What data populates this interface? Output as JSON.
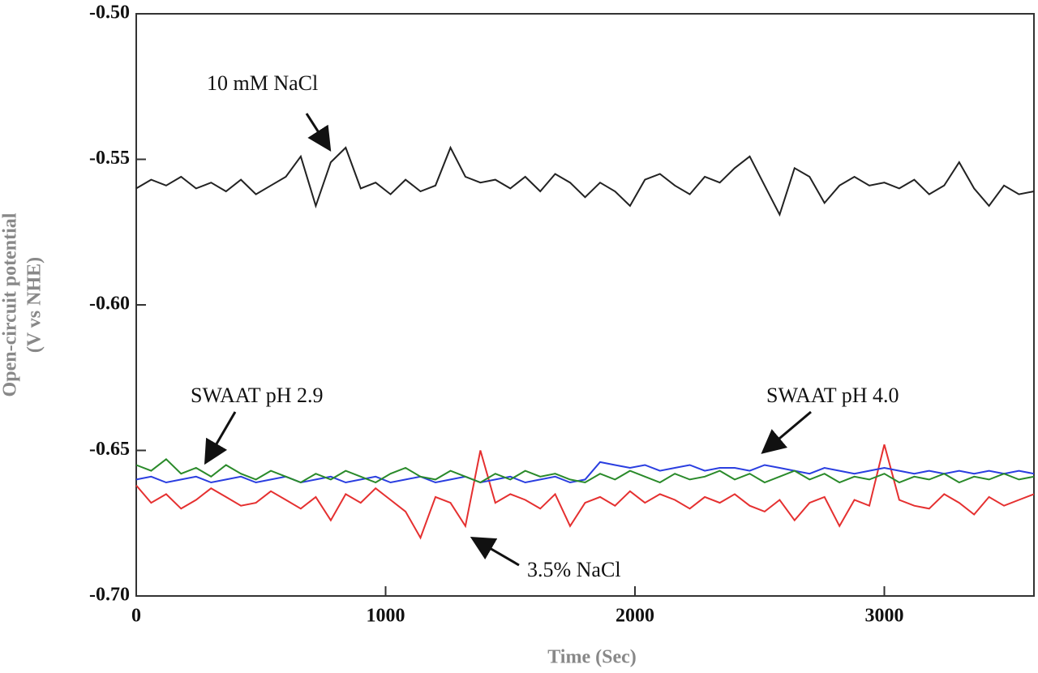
{
  "chart_data": {
    "type": "line",
    "xlabel": "Time (Sec)",
    "ylabel": [
      "Open-circuit potential",
      "(V vs NHE)"
    ],
    "xlim": [
      0,
      3600
    ],
    "ylim": [
      -0.7,
      -0.5
    ],
    "xticks": [
      0,
      1000,
      2000,
      3000
    ],
    "yticks": [
      {
        "value": -0.7,
        "label": "-0.70"
      },
      -0.65,
      {
        "value": -0.6,
        "label": "-0.60"
      },
      -0.55,
      {
        "value": -0.5,
        "label": "-0.50"
      }
    ],
    "x": [
      0,
      60,
      120,
      180,
      240,
      300,
      360,
      420,
      480,
      540,
      600,
      660,
      720,
      780,
      840,
      900,
      960,
      1020,
      1080,
      1140,
      1200,
      1260,
      1320,
      1380,
      1440,
      1500,
      1560,
      1620,
      1680,
      1740,
      1800,
      1860,
      1920,
      1980,
      2040,
      2100,
      2160,
      2220,
      2280,
      2340,
      2400,
      2460,
      2520,
      2580,
      2640,
      2700,
      2760,
      2820,
      2880,
      2940,
      3000,
      3060,
      3120,
      3180,
      3240,
      3300,
      3360,
      3420,
      3480,
      3540,
      3600
    ],
    "series": [
      {
        "name": "3.5% NaCl",
        "color": "#e53030",
        "values": [
          -0.662,
          -0.668,
          -0.665,
          -0.67,
          -0.667,
          -0.663,
          -0.666,
          -0.669,
          -0.668,
          -0.664,
          -0.667,
          -0.67,
          -0.666,
          -0.674,
          -0.665,
          -0.668,
          -0.663,
          -0.667,
          -0.671,
          -0.68,
          -0.666,
          -0.668,
          -0.676,
          -0.65,
          -0.668,
          -0.665,
          -0.667,
          -0.67,
          -0.665,
          -0.676,
          -0.668,
          -0.666,
          -0.669,
          -0.664,
          -0.668,
          -0.665,
          -0.667,
          -0.67,
          -0.666,
          -0.668,
          -0.665,
          -0.669,
          -0.671,
          -0.667,
          -0.674,
          -0.668,
          -0.666,
          -0.676,
          -0.667,
          -0.669,
          -0.648,
          -0.667,
          -0.669,
          -0.67,
          -0.665,
          -0.668,
          -0.672,
          -0.666,
          -0.669,
          -0.667,
          -0.665
        ]
      },
      {
        "name": "SWAAT pH 4.0",
        "color": "#2a3ee0",
        "values": [
          -0.66,
          -0.659,
          -0.661,
          -0.66,
          -0.659,
          -0.661,
          -0.66,
          -0.659,
          -0.661,
          -0.66,
          -0.659,
          -0.661,
          -0.66,
          -0.659,
          -0.661,
          -0.66,
          -0.659,
          -0.661,
          -0.66,
          -0.659,
          -0.661,
          -0.66,
          -0.659,
          -0.661,
          -0.66,
          -0.659,
          -0.661,
          -0.66,
          -0.659,
          -0.661,
          -0.66,
          -0.654,
          -0.655,
          -0.656,
          -0.655,
          -0.657,
          -0.656,
          -0.655,
          -0.657,
          -0.656,
          -0.656,
          -0.657,
          -0.655,
          -0.656,
          -0.657,
          -0.658,
          -0.656,
          -0.657,
          -0.658,
          -0.657,
          -0.656,
          -0.657,
          -0.658,
          -0.657,
          -0.658,
          -0.657,
          -0.658,
          -0.657,
          -0.658,
          -0.657,
          -0.658
        ]
      },
      {
        "name": "SWAAT pH 2.9",
        "color": "#2a8a2a",
        "values": [
          -0.655,
          -0.657,
          -0.653,
          -0.658,
          -0.656,
          -0.659,
          -0.655,
          -0.658,
          -0.66,
          -0.657,
          -0.659,
          -0.661,
          -0.658,
          -0.66,
          -0.657,
          -0.659,
          -0.661,
          -0.658,
          -0.656,
          -0.659,
          -0.66,
          -0.657,
          -0.659,
          -0.661,
          -0.658,
          -0.66,
          -0.657,
          -0.659,
          -0.658,
          -0.66,
          -0.661,
          -0.658,
          -0.66,
          -0.657,
          -0.659,
          -0.661,
          -0.658,
          -0.66,
          -0.659,
          -0.657,
          -0.66,
          -0.658,
          -0.661,
          -0.659,
          -0.657,
          -0.66,
          -0.658,
          -0.661,
          -0.659,
          -0.66,
          -0.658,
          -0.661,
          -0.659,
          -0.66,
          -0.658,
          -0.661,
          -0.659,
          -0.66,
          -0.658,
          -0.66,
          -0.659
        ]
      },
      {
        "name": "10 mM NaCl",
        "color": "#222222",
        "values": [
          -0.56,
          -0.557,
          -0.559,
          -0.556,
          -0.56,
          -0.558,
          -0.561,
          -0.557,
          -0.562,
          -0.559,
          -0.556,
          -0.549,
          -0.566,
          -0.551,
          -0.546,
          -0.56,
          -0.558,
          -0.562,
          -0.557,
          -0.561,
          -0.559,
          -0.546,
          -0.556,
          -0.558,
          -0.557,
          -0.56,
          -0.556,
          -0.561,
          -0.555,
          -0.558,
          -0.563,
          -0.558,
          -0.561,
          -0.566,
          -0.557,
          -0.555,
          -0.559,
          -0.562,
          -0.556,
          -0.558,
          -0.553,
          -0.549,
          -0.559,
          -0.569,
          -0.553,
          -0.556,
          -0.565,
          -0.559,
          -0.556,
          -0.559,
          -0.558,
          -0.56,
          -0.557,
          -0.562,
          -0.559,
          -0.551,
          -0.56,
          -0.566,
          -0.559,
          -0.562,
          -0.561
        ]
      }
    ]
  }
}
